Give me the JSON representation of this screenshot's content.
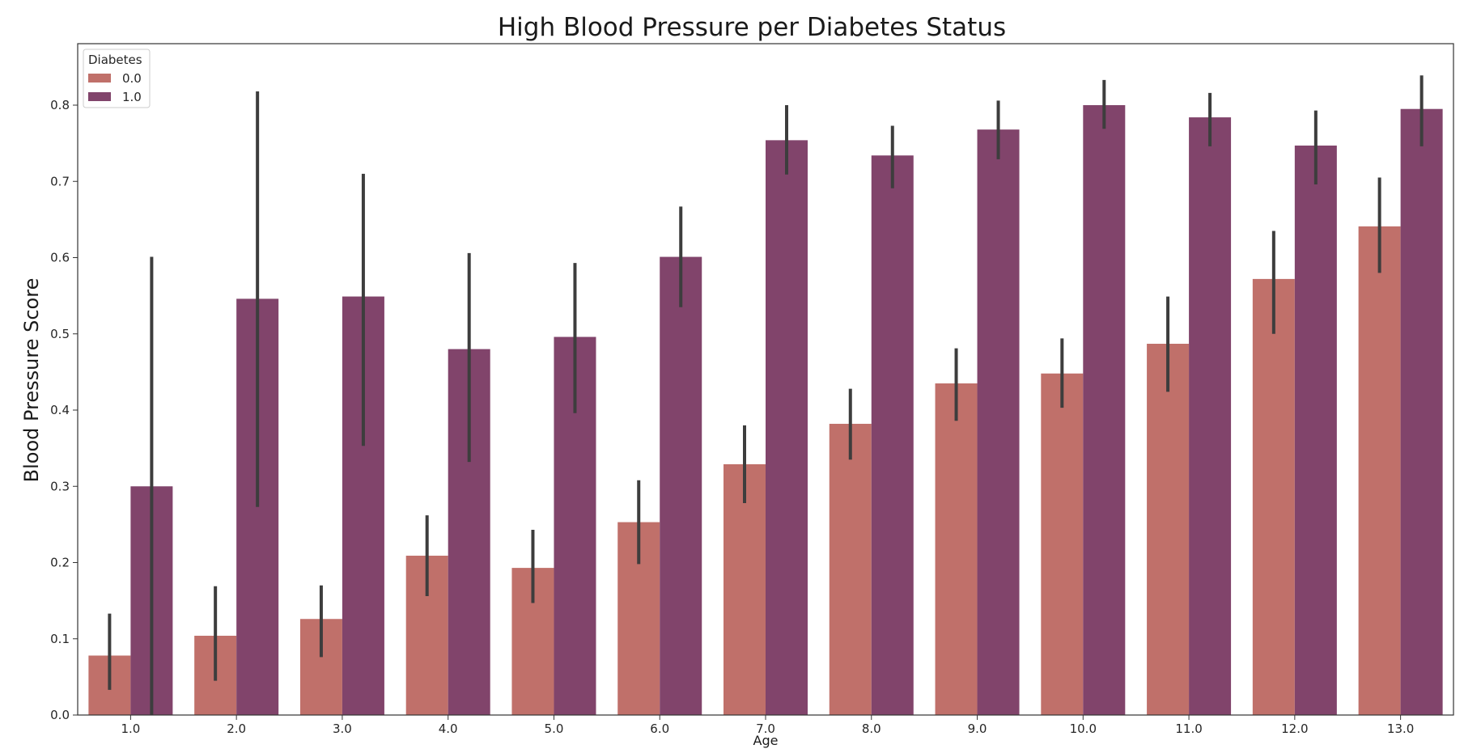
{
  "chart_data": {
    "type": "bar",
    "title": "High Blood Pressure per Diabetes Status",
    "xlabel": "Age",
    "ylabel": "Blood Pressure Score",
    "categories": [
      "1.0",
      "2.0",
      "3.0",
      "4.0",
      "5.0",
      "6.0",
      "7.0",
      "8.0",
      "9.0",
      "10.0",
      "11.0",
      "12.0",
      "13.0"
    ],
    "ylim": [
      0,
      0.88
    ],
    "yticks": [
      "0.0",
      "0.1",
      "0.2",
      "0.3",
      "0.4",
      "0.5",
      "0.6",
      "0.7",
      "0.8"
    ],
    "grid": false,
    "legend": {
      "title": "Diabetes",
      "placement": "top-left"
    },
    "series": [
      {
        "name": "0.0",
        "color": "#c0706a",
        "values": [
          0.078,
          0.104,
          0.126,
          0.209,
          0.193,
          0.253,
          0.329,
          0.382,
          0.435,
          0.448,
          0.487,
          0.572,
          0.641
        ],
        "ci": [
          [
            0.033,
            0.133
          ],
          [
            0.045,
            0.169
          ],
          [
            0.076,
            0.17
          ],
          [
            0.156,
            0.262
          ],
          [
            0.147,
            0.243
          ],
          [
            0.198,
            0.308
          ],
          [
            0.278,
            0.38
          ],
          [
            0.335,
            0.428
          ],
          [
            0.386,
            0.481
          ],
          [
            0.403,
            0.494
          ],
          [
            0.424,
            0.549
          ],
          [
            0.5,
            0.635
          ],
          [
            0.58,
            0.705
          ]
        ]
      },
      {
        "name": "1.0",
        "color": "#81446b",
        "values": [
          0.3,
          0.546,
          0.549,
          0.48,
          0.496,
          0.601,
          0.754,
          0.734,
          0.768,
          0.8,
          0.784,
          0.747,
          0.795
        ],
        "ci": [
          [
            0.0,
            0.601
          ],
          [
            0.273,
            0.818
          ],
          [
            0.353,
            0.71
          ],
          [
            0.332,
            0.606
          ],
          [
            0.396,
            0.593
          ],
          [
            0.535,
            0.667
          ],
          [
            0.709,
            0.8
          ],
          [
            0.691,
            0.773
          ],
          [
            0.729,
            0.806
          ],
          [
            0.769,
            0.833
          ],
          [
            0.746,
            0.816
          ],
          [
            0.696,
            0.793
          ],
          [
            0.746,
            0.839
          ]
        ]
      }
    ]
  }
}
